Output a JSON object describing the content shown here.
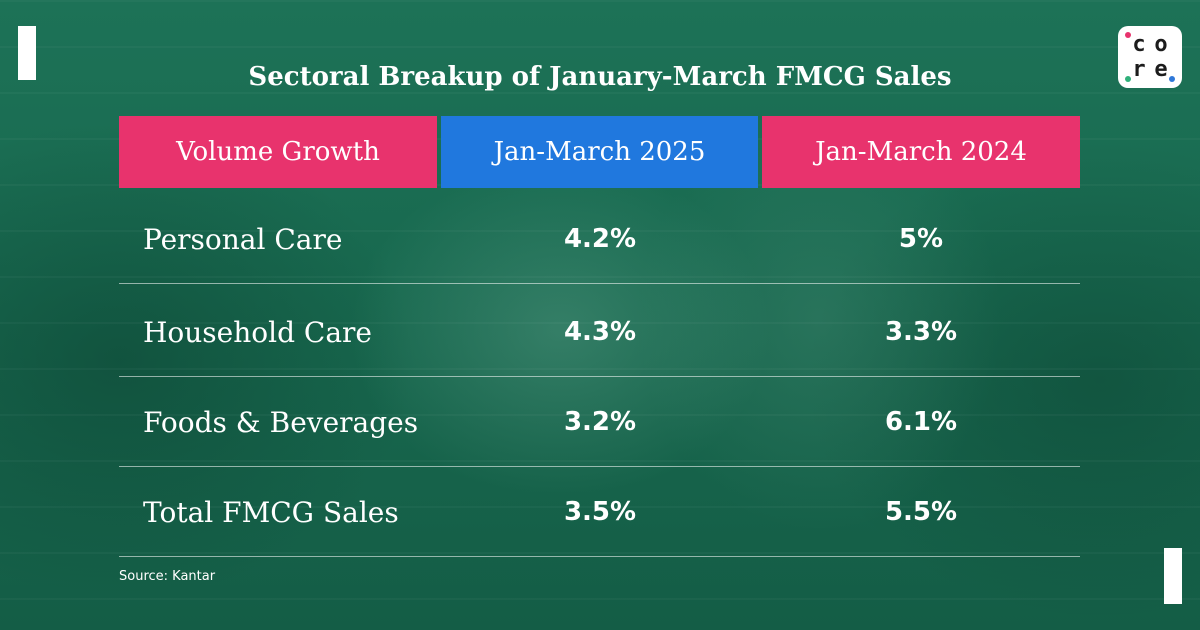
{
  "title": "Sectoral Breakup of January-March FMCG Sales",
  "logo": {
    "line1": [
      "c",
      "o"
    ],
    "line2": [
      "r",
      "e"
    ]
  },
  "chart_data": {
    "type": "table",
    "title": "Sectoral Breakup of January-March FMCG Sales",
    "columns": [
      "Volume Growth",
      "Jan-March 2025",
      "Jan-March 2024"
    ],
    "rows": [
      {
        "category": "Personal Care",
        "jan_march_2025": "4.2%",
        "jan_march_2024": "5%"
      },
      {
        "category": "Household Care",
        "jan_march_2025": "4.3%",
        "jan_march_2024": "3.3%"
      },
      {
        "category": "Foods & Beverages",
        "jan_march_2025": "3.2%",
        "jan_march_2024": "6.1%"
      },
      {
        "category": "Total FMCG Sales",
        "jan_march_2025": "3.5%",
        "jan_march_2024": "5.5%"
      }
    ],
    "values_2025": [
      4.2,
      4.3,
      3.2,
      3.5
    ],
    "values_2024": [
      5,
      3.3,
      6.1,
      5.5
    ]
  },
  "source": "Source: Kantar",
  "colors": {
    "background": "#1a6b52",
    "header_pink": "#e8336d",
    "header_blue": "#2078de",
    "text": "#ffffff"
  }
}
